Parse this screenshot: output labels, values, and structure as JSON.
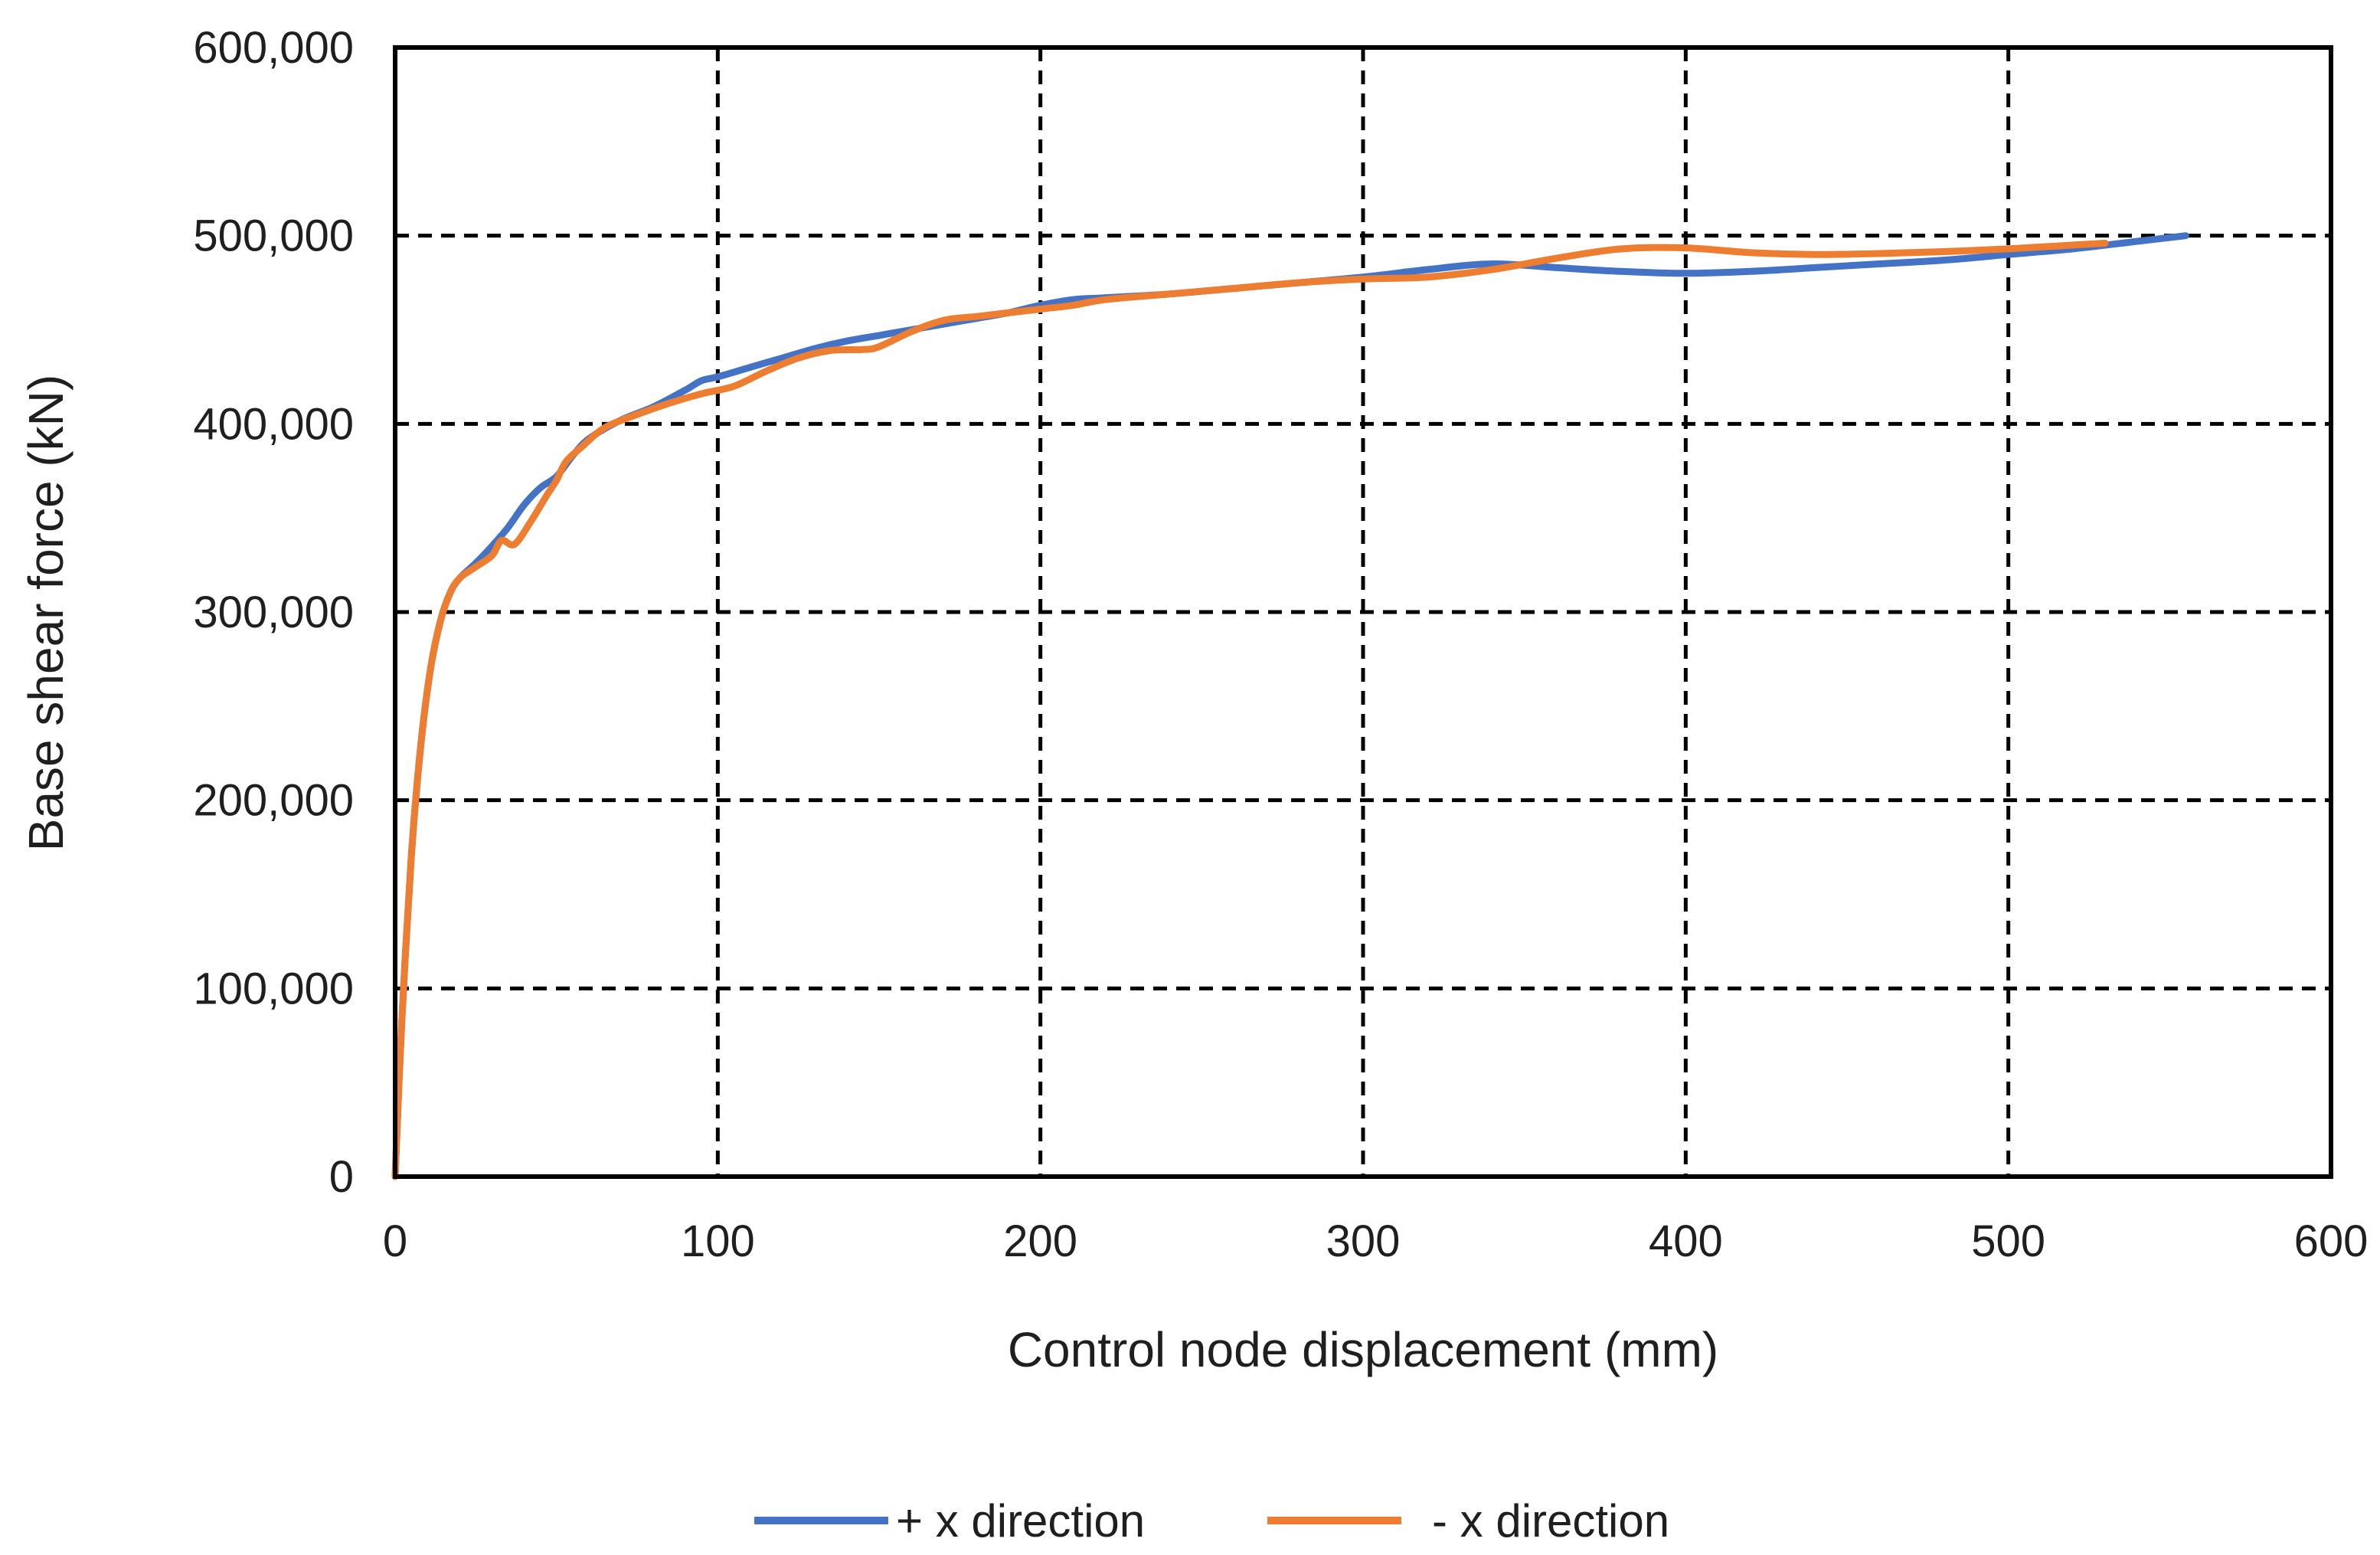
{
  "chart_data": {
    "type": "line",
    "title": "",
    "xlabel": "Control node displacement (mm)",
    "ylabel": "Base shear force (kN)",
    "xlim": [
      0,
      600
    ],
    "ylim": [
      0,
      600000
    ],
    "x_ticks": [
      0,
      100,
      200,
      300,
      400,
      500,
      600
    ],
    "x_tick_labels": [
      "0",
      "100",
      "200",
      "300",
      "400",
      "500",
      "600"
    ],
    "y_ticks": [
      0,
      100000,
      200000,
      300000,
      400000,
      500000,
      600000
    ],
    "y_tick_labels": [
      "0",
      "100,000",
      "200,000",
      "300,000",
      "400,000",
      "500,000",
      "600,000"
    ],
    "grid": true,
    "legend_position": "bottom",
    "series": [
      {
        "name": "+ x direction",
        "color": "#4472C4",
        "points": [
          [
            0,
            0
          ],
          [
            2,
            80000
          ],
          [
            5,
            170000
          ],
          [
            8,
            230000
          ],
          [
            11,
            270000
          ],
          [
            14,
            295000
          ],
          [
            17,
            310000
          ],
          [
            20,
            318000
          ],
          [
            25,
            326000
          ],
          [
            30,
            335000
          ],
          [
            35,
            345000
          ],
          [
            40,
            357000
          ],
          [
            45,
            366000
          ],
          [
            50,
            372000
          ],
          [
            55,
            383000
          ],
          [
            60,
            392000
          ],
          [
            70,
            402000
          ],
          [
            80,
            409000
          ],
          [
            90,
            418000
          ],
          [
            95,
            423000
          ],
          [
            100,
            425000
          ],
          [
            110,
            430000
          ],
          [
            120,
            435000
          ],
          [
            130,
            440000
          ],
          [
            140,
            444000
          ],
          [
            150,
            447000
          ],
          [
            160,
            450000
          ],
          [
            170,
            453000
          ],
          [
            180,
            456000
          ],
          [
            190,
            459000
          ],
          [
            200,
            463000
          ],
          [
            210,
            466000
          ],
          [
            220,
            467000
          ],
          [
            240,
            469000
          ],
          [
            260,
            472000
          ],
          [
            280,
            475000
          ],
          [
            300,
            478000
          ],
          [
            320,
            482000
          ],
          [
            340,
            485000
          ],
          [
            360,
            483000
          ],
          [
            380,
            481000
          ],
          [
            400,
            480000
          ],
          [
            420,
            481000
          ],
          [
            440,
            483000
          ],
          [
            460,
            485000
          ],
          [
            480,
            487000
          ],
          [
            500,
            490000
          ],
          [
            520,
            493000
          ],
          [
            540,
            497000
          ],
          [
            555,
            500000
          ]
        ]
      },
      {
        "name": "- x direction",
        "color": "#ED7D31",
        "points": [
          [
            0,
            0
          ],
          [
            2,
            80000
          ],
          [
            5,
            170000
          ],
          [
            8,
            230000
          ],
          [
            11,
            270000
          ],
          [
            14,
            295000
          ],
          [
            17,
            310000
          ],
          [
            20,
            318000
          ],
          [
            25,
            324000
          ],
          [
            30,
            330000
          ],
          [
            33,
            338000
          ],
          [
            37,
            336000
          ],
          [
            42,
            348000
          ],
          [
            47,
            362000
          ],
          [
            50,
            370000
          ],
          [
            53,
            380000
          ],
          [
            58,
            388000
          ],
          [
            65,
            398000
          ],
          [
            75,
            405000
          ],
          [
            85,
            411000
          ],
          [
            95,
            416000
          ],
          [
            105,
            420000
          ],
          [
            115,
            428000
          ],
          [
            125,
            435000
          ],
          [
            135,
            439000
          ],
          [
            145,
            439500
          ],
          [
            150,
            441000
          ],
          [
            160,
            449000
          ],
          [
            170,
            455000
          ],
          [
            180,
            457000
          ],
          [
            190,
            459000
          ],
          [
            200,
            461000
          ],
          [
            210,
            463000
          ],
          [
            220,
            466000
          ],
          [
            240,
            469000
          ],
          [
            260,
            472000
          ],
          [
            280,
            475000
          ],
          [
            300,
            477000
          ],
          [
            320,
            478000
          ],
          [
            340,
            482000
          ],
          [
            360,
            488000
          ],
          [
            380,
            493000
          ],
          [
            400,
            493500
          ],
          [
            420,
            491000
          ],
          [
            440,
            490000
          ],
          [
            460,
            490500
          ],
          [
            480,
            491500
          ],
          [
            500,
            493000
          ],
          [
            515,
            494500
          ],
          [
            530,
            496000
          ]
        ]
      }
    ]
  }
}
